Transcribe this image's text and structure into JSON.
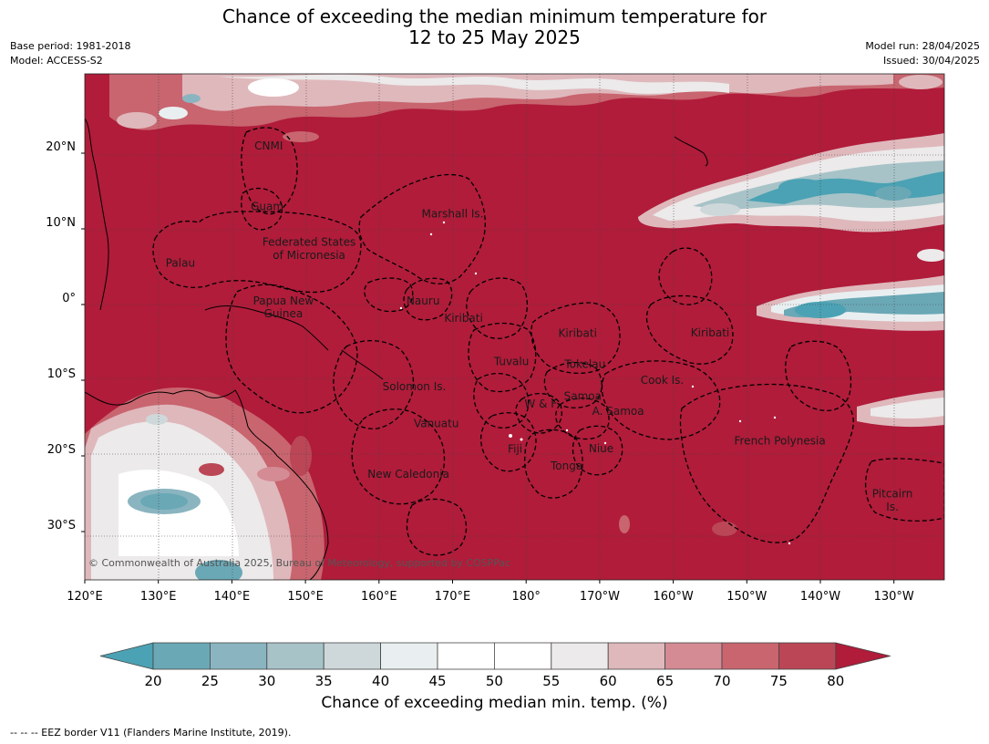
{
  "title_line1": "Chance of exceeding the median minimum temperature for",
  "title_line2": "12 to 25 May 2025",
  "base_period": "Base period: 1981-2018",
  "model": "Model: ACCESS-S2",
  "model_run": "Model run: 28/04/2025",
  "issued": "Issued: 30/04/2025",
  "copyright": "© Commonwealth of Australia 2025, Bureau of Meteorology, supported by COSPPac",
  "lon_ticks": [
    "120°E",
    "130°E",
    "140°E",
    "150°E",
    "160°E",
    "170°E",
    "180°",
    "170°W",
    "160°W",
    "150°W",
    "140°W",
    "130°W"
  ],
  "lat_ticks": [
    "20°N",
    "10°N",
    "0°",
    "10°S",
    "20°S",
    "30°S"
  ],
  "regions": [
    {
      "name": "CNMI",
      "lon": 145.0,
      "lat": 20.5
    },
    {
      "name": "Guam",
      "lon": 144.8,
      "lat": 12.5
    },
    {
      "name": "Marshall Is.",
      "lon": 170.0,
      "lat": 11.5
    },
    {
      "name": "Federated States",
      "lon": 150.5,
      "lat": 7.8
    },
    {
      "name": "of Micronesia",
      "lon": 150.5,
      "lat": 6.0
    },
    {
      "name": "Palau",
      "lon": 133.0,
      "lat": 5.0
    },
    {
      "name": "Papua New",
      "lon": 147.0,
      "lat": 0.0
    },
    {
      "name": "Guinea",
      "lon": 147.0,
      "lat": -1.7
    },
    {
      "name": "Nauru",
      "lon": 166.0,
      "lat": 0.0
    },
    {
      "name": "Kiribati",
      "lon": 171.5,
      "lat": -2.3
    },
    {
      "name": "Kiribati",
      "lon": -173.0,
      "lat": -4.3
    },
    {
      "name": "Kiribati",
      "lon": -155.0,
      "lat": -4.2
    },
    {
      "name": "Tuvalu",
      "lon": 178.0,
      "lat": -8.0
    },
    {
      "name": "Tokelau",
      "lon": -172.0,
      "lat": -8.4
    },
    {
      "name": "Cook Is.",
      "lon": -161.5,
      "lat": -10.5
    },
    {
      "name": "Solomon Is.",
      "lon": 164.8,
      "lat": -11.3
    },
    {
      "name": "Samoa",
      "lon": -172.3,
      "lat": -12.6
    },
    {
      "name": "W & F",
      "lon": -178.0,
      "lat": -13.6
    },
    {
      "name": "A. Samoa",
      "lon": -167.5,
      "lat": -14.6
    },
    {
      "name": "Vanuatu",
      "lon": 167.8,
      "lat": -16.2
    },
    {
      "name": "Fiji",
      "lon": 178.5,
      "lat": -19.6
    },
    {
      "name": "Niue",
      "lon": -169.8,
      "lat": -19.5
    },
    {
      "name": "French Polynesia",
      "lon": -145.5,
      "lat": -18.5
    },
    {
      "name": "Tonga",
      "lon": -174.5,
      "lat": -21.8
    },
    {
      "name": "New Caledonia",
      "lon": 164.0,
      "lat": -22.9
    },
    {
      "name": "Pitcairn",
      "lon": -130.2,
      "lat": -25.5
    },
    {
      "name": "Is.",
      "lon": -130.2,
      "lat": -27.2
    }
  ],
  "colorbar": {
    "ticks": [
      "20",
      "25",
      "30",
      "35",
      "40",
      "45",
      "50",
      "55",
      "60",
      "65",
      "70",
      "75",
      "80"
    ],
    "colors": [
      "#6aa8b6",
      "#8ab5c0",
      "#a7c3c8",
      "#ced8da",
      "#e9eff0",
      "#ffffff",
      "#ffffff",
      "#eceaea",
      "#dfb8bc",
      "#d48b94",
      "#c8656f",
      "#ba4656"
    ],
    "under_color": "#4ba2b4",
    "over_color": "#b01c3a",
    "label": "Chance of exceeding median min. temp. (%)"
  },
  "colors": {
    "dominant_red": "#b01c3a",
    "teal": "#4ba2b4"
  },
  "footnote": "--  --  -- EEZ border V11 (Flanders Marine Institute, 2019)."
}
